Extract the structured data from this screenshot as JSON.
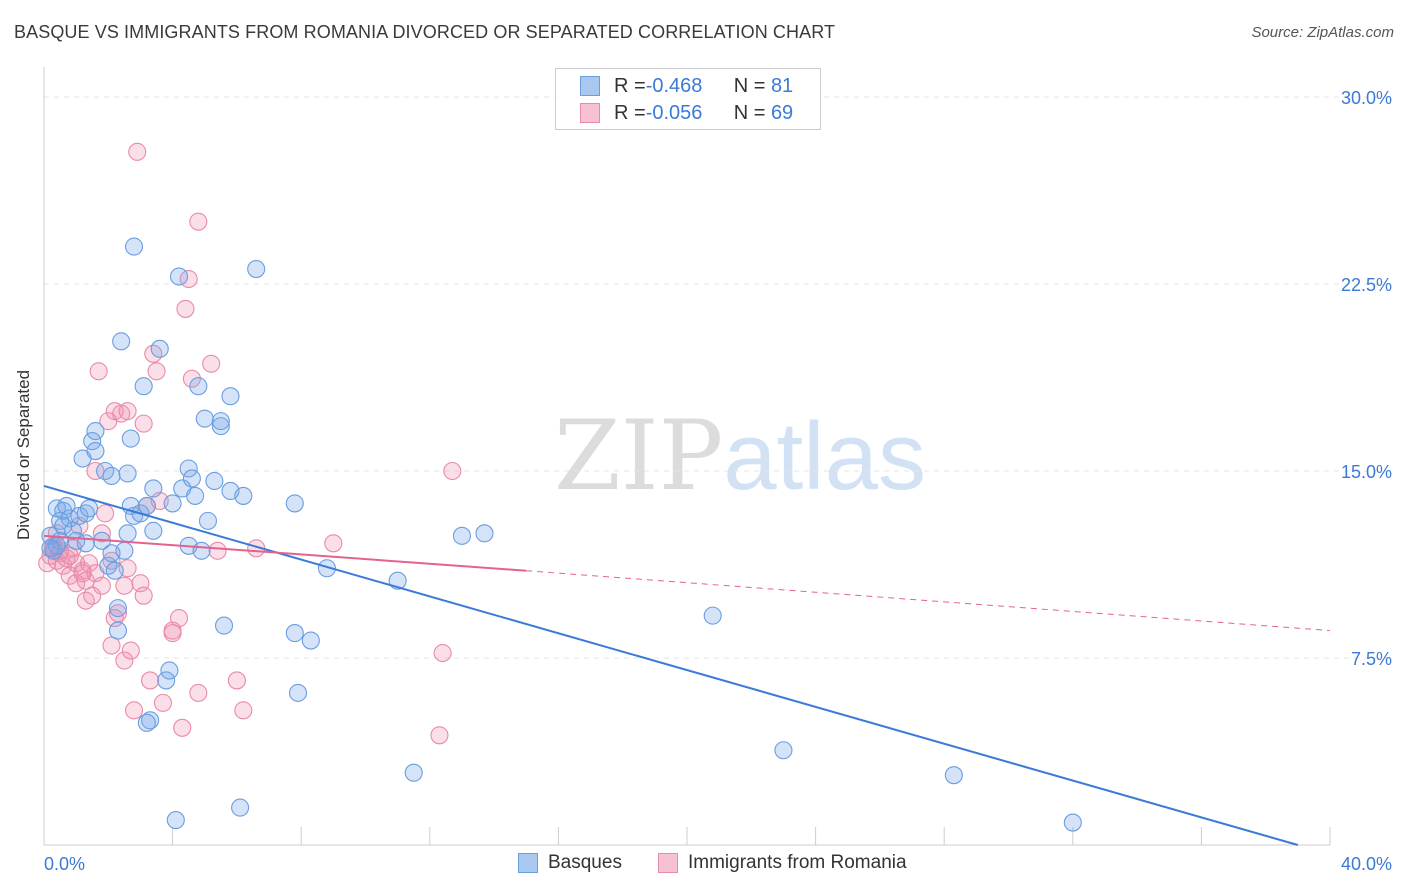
{
  "title": "BASQUE VS IMMIGRANTS FROM ROMANIA DIVORCED OR SEPARATED CORRELATION CHART",
  "source": "Source: ZipAtlas.com",
  "watermark": {
    "zip": "ZIP",
    "atlas": "atlas"
  },
  "legend": {
    "rows": [
      {
        "r_label": "R = ",
        "r_value": "-0.468",
        "n_label": "N = ",
        "n_value": "81",
        "color": "#a9c8f0",
        "border": "#6c9fe0"
      },
      {
        "r_label": "R = ",
        "r_value": "-0.056",
        "n_label": "N = ",
        "n_value": "69",
        "color": "#f6c1d2",
        "border": "#ea8aa9"
      }
    ]
  },
  "bottom_legend": {
    "basques": "Basques",
    "romania": "Immigrants from Romania"
  },
  "colors": {
    "blue": "#3b7ad6",
    "blue_fill": "rgba(120,168,232,0.32)",
    "blue_stroke": "#6a9ee0",
    "pink": "#e4628e",
    "pink_fill": "rgba(240,150,180,0.30)",
    "pink_stroke": "#ea8aa9",
    "grid": "#e4e4e4",
    "tick_text": "#3b7ad6"
  },
  "chart_data": {
    "type": "scatter",
    "title": "BASQUE VS IMMIGRANTS FROM ROMANIA DIVORCED OR SEPARATED CORRELATION CHART",
    "xlabel": "",
    "ylabel": "Divorced or Separated",
    "xlim": [
      0,
      40
    ],
    "ylim": [
      0,
      30
    ],
    "x_tick_labels": [
      "0.0%",
      "40.0%"
    ],
    "y_ticks": [
      7.5,
      15.0,
      22.5,
      30.0
    ],
    "y_tick_labels": [
      "7.5%",
      "15.0%",
      "22.5%",
      "30.0%"
    ],
    "grid": true,
    "series": [
      {
        "name": "Basques",
        "r": -0.468,
        "n": 81,
        "trend": {
          "x0": 0,
          "y0": 14.4,
          "x1": 39.0,
          "y1": 0.0
        },
        "points": [
          [
            0.2,
            12.4
          ],
          [
            0.3,
            11.8
          ],
          [
            0.4,
            13.5
          ],
          [
            0.5,
            12.2
          ],
          [
            0.5,
            13.0
          ],
          [
            0.6,
            13.4
          ],
          [
            0.7,
            13.6
          ],
          [
            0.8,
            13.1
          ],
          [
            0.9,
            12.6
          ],
          [
            1.0,
            12.2
          ],
          [
            1.1,
            13.2
          ],
          [
            1.2,
            15.5
          ],
          [
            1.3,
            13.3
          ],
          [
            1.4,
            13.5
          ],
          [
            1.5,
            16.2
          ],
          [
            1.6,
            15.8
          ],
          [
            1.6,
            16.6
          ],
          [
            1.8,
            12.2
          ],
          [
            1.9,
            15.0
          ],
          [
            2.0,
            11.2
          ],
          [
            2.1,
            14.8
          ],
          [
            2.2,
            11.0
          ],
          [
            2.3,
            9.5
          ],
          [
            2.3,
            8.6
          ],
          [
            2.4,
            20.2
          ],
          [
            2.5,
            11.8
          ],
          [
            2.6,
            12.5
          ],
          [
            2.6,
            14.9
          ],
          [
            2.7,
            13.6
          ],
          [
            2.7,
            16.3
          ],
          [
            2.8,
            13.2
          ],
          [
            2.8,
            24.0
          ],
          [
            3.0,
            13.3
          ],
          [
            3.1,
            18.4
          ],
          [
            3.2,
            13.6
          ],
          [
            3.4,
            14.3
          ],
          [
            3.4,
            12.6
          ],
          [
            3.6,
            19.9
          ],
          [
            3.8,
            6.6
          ],
          [
            3.9,
            7.0
          ],
          [
            4.0,
            13.7
          ],
          [
            4.2,
            22.8
          ],
          [
            4.3,
            14.3
          ],
          [
            4.5,
            12.0
          ],
          [
            4.5,
            15.1
          ],
          [
            4.6,
            14.7
          ],
          [
            4.7,
            14.0
          ],
          [
            4.8,
            18.4
          ],
          [
            4.9,
            11.8
          ],
          [
            5.0,
            17.1
          ],
          [
            5.1,
            13.0
          ],
          [
            5.3,
            14.6
          ],
          [
            5.5,
            16.8
          ],
          [
            5.5,
            17.0
          ],
          [
            5.6,
            8.8
          ],
          [
            5.8,
            18.0
          ],
          [
            5.8,
            14.2
          ],
          [
            6.2,
            14.0
          ],
          [
            6.6,
            23.1
          ],
          [
            7.8,
            8.5
          ],
          [
            7.8,
            13.7
          ],
          [
            8.3,
            8.2
          ],
          [
            8.8,
            11.1
          ],
          [
            11.0,
            10.6
          ],
          [
            13.0,
            12.4
          ],
          [
            13.7,
            12.5
          ],
          [
            20.8,
            9.2
          ],
          [
            23.0,
            3.8
          ],
          [
            28.3,
            2.8
          ],
          [
            32.0,
            0.9
          ],
          [
            4.1,
            1.0
          ],
          [
            6.1,
            1.5
          ],
          [
            11.5,
            2.9
          ],
          [
            7.9,
            6.1
          ],
          [
            3.3,
            5.0
          ],
          [
            2.1,
            11.7
          ],
          [
            1.3,
            12.1
          ],
          [
            0.6,
            12.8
          ],
          [
            0.4,
            12.0
          ],
          [
            0.2,
            11.9
          ],
          [
            3.2,
            4.9
          ]
        ]
      },
      {
        "name": "Immigrants from Romania",
        "r": -0.056,
        "n": 69,
        "trend": {
          "x0": 0,
          "y0": 12.4,
          "x1": 15.0,
          "y1": 11.0,
          "x_dash_end": 40,
          "y_dash_end": 8.6
        },
        "points": [
          [
            0.1,
            11.3
          ],
          [
            0.2,
            11.6
          ],
          [
            0.3,
            12.0
          ],
          [
            0.3,
            11.9
          ],
          [
            0.4,
            11.4
          ],
          [
            0.5,
            11.7
          ],
          [
            0.5,
            11.8
          ],
          [
            0.6,
            11.2
          ],
          [
            0.7,
            11.5
          ],
          [
            0.8,
            10.8
          ],
          [
            0.9,
            11.9
          ],
          [
            1.0,
            11.3
          ],
          [
            1.0,
            10.5
          ],
          [
            1.1,
            12.8
          ],
          [
            1.2,
            11.0
          ],
          [
            1.3,
            10.6
          ],
          [
            1.3,
            9.8
          ],
          [
            1.4,
            11.3
          ],
          [
            1.5,
            10.0
          ],
          [
            1.6,
            10.9
          ],
          [
            1.6,
            15.0
          ],
          [
            1.7,
            19.0
          ],
          [
            1.8,
            12.5
          ],
          [
            1.8,
            10.4
          ],
          [
            1.9,
            13.3
          ],
          [
            2.0,
            17.0
          ],
          [
            2.1,
            11.4
          ],
          [
            2.1,
            8.0
          ],
          [
            2.2,
            17.4
          ],
          [
            2.2,
            9.1
          ],
          [
            2.3,
            9.3
          ],
          [
            2.4,
            17.3
          ],
          [
            2.5,
            7.4
          ],
          [
            2.5,
            10.4
          ],
          [
            2.6,
            17.4
          ],
          [
            2.6,
            11.1
          ],
          [
            2.7,
            7.8
          ],
          [
            2.8,
            5.4
          ],
          [
            2.9,
            27.8
          ],
          [
            3.0,
            10.5
          ],
          [
            3.1,
            16.9
          ],
          [
            3.1,
            10.0
          ],
          [
            3.2,
            13.6
          ],
          [
            3.3,
            6.6
          ],
          [
            3.6,
            13.8
          ],
          [
            3.4,
            19.7
          ],
          [
            3.5,
            19.0
          ],
          [
            3.7,
            5.7
          ],
          [
            4.0,
            8.5
          ],
          [
            4.0,
            8.6
          ],
          [
            4.2,
            9.1
          ],
          [
            4.3,
            4.7
          ],
          [
            4.4,
            21.5
          ],
          [
            4.5,
            22.7
          ],
          [
            4.6,
            18.7
          ],
          [
            4.8,
            6.1
          ],
          [
            4.8,
            25.0
          ],
          [
            5.2,
            19.3
          ],
          [
            5.4,
            11.8
          ],
          [
            6.0,
            6.6
          ],
          [
            6.2,
            5.4
          ],
          [
            6.6,
            11.9
          ],
          [
            9.0,
            12.1
          ],
          [
            12.3,
            4.4
          ],
          [
            12.4,
            7.7
          ],
          [
            12.7,
            15.0
          ],
          [
            0.8,
            11.6
          ],
          [
            1.2,
            10.9
          ],
          [
            0.4,
            12.5
          ]
        ]
      }
    ]
  }
}
